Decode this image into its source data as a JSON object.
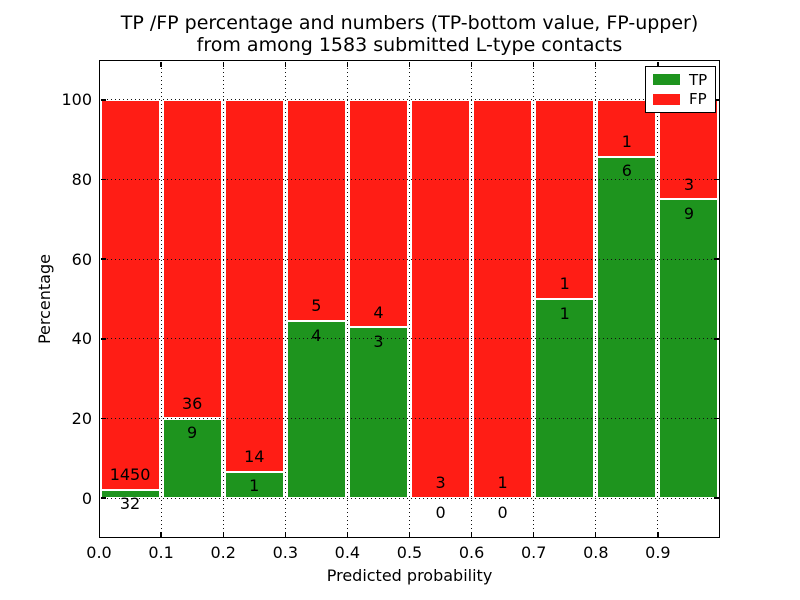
{
  "title": {
    "line1": "TP /FP percentage and numbers (TP-bottom value, FP-upper)",
    "line2": "from among 1583 submitted L-type contacts"
  },
  "axes": {
    "xlabel": "Predicted probability",
    "ylabel": "Percentage"
  },
  "legend": {
    "items": [
      {
        "label": "TP",
        "color": "#1e941e"
      },
      {
        "label": "FP",
        "color": "#ff1d15"
      }
    ],
    "position": "upper right"
  },
  "chart_data": {
    "type": "bar",
    "stacked": true,
    "normalized_to_percent": true,
    "title": "TP /FP percentage and numbers (TP-bottom value, FP-upper)\nfrom among 1583 submitted L-type contacts",
    "xlabel": "Predicted probability",
    "ylabel": "Percentage",
    "xlim": [
      0.0,
      1.0
    ],
    "ylim": [
      -10,
      110
    ],
    "xticks": [
      0.0,
      0.1,
      0.2,
      0.3,
      0.4,
      0.5,
      0.6,
      0.7,
      0.8,
      0.9
    ],
    "xtick_labels": [
      "0.0",
      "0.1",
      "0.2",
      "0.3",
      "0.4",
      "0.5",
      "0.6",
      "0.7",
      "0.8",
      "0.9"
    ],
    "yticks": [
      0,
      20,
      40,
      60,
      80,
      100
    ],
    "ytick_labels": [
      "0",
      "20",
      "40",
      "60",
      "80",
      "100"
    ],
    "grid": "dotted",
    "legend_position": "upper right",
    "bin_width": 0.1,
    "bin_starts": [
      0.0,
      0.1,
      0.2,
      0.3,
      0.4,
      0.5,
      0.6,
      0.7,
      0.8,
      0.9
    ],
    "series": [
      {
        "name": "TP",
        "color": "#1e941e",
        "counts": [
          32,
          9,
          1,
          4,
          3,
          0,
          0,
          1,
          6,
          9
        ]
      },
      {
        "name": "FP",
        "color": "#ff1d15",
        "counts": [
          1450,
          36,
          14,
          5,
          4,
          3,
          1,
          1,
          1,
          3
        ]
      }
    ],
    "tp_percent": [
      2.16,
      20.0,
      6.67,
      44.44,
      42.86,
      0.0,
      0.0,
      50.0,
      85.71,
      75.0
    ],
    "total_contacts": 1583
  }
}
